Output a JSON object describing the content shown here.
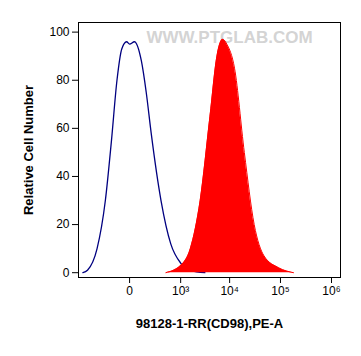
{
  "chart_data": {
    "type": "area",
    "xlabel": "98128-1-RR(CD98),PE-A",
    "ylabel": "Relative Cell Number",
    "annotations": [
      {
        "text": "WWW.PTGLAB.COM"
      }
    ],
    "log": "x",
    "xlim": [
      -1000,
      1500000
    ],
    "xticks": [
      0,
      {
        "value": 1000,
        "label": "10³"
      },
      {
        "value": 10000,
        "label": "10⁴"
      },
      {
        "value": 100000,
        "label": "10⁵"
      },
      {
        "value": 1000000,
        "label": "10⁶"
      }
    ],
    "ylim": [
      -2,
      104
    ],
    "yticks": [
      0,
      20,
      40,
      60,
      80,
      100
    ],
    "grid": false,
    "series": [
      {
        "type": "line",
        "color": "#000080",
        "x": [
          -800,
          -630,
          -370,
          -220,
          -140,
          -85,
          -47,
          -16,
          0,
          27,
          78,
          124,
          183,
          347,
          600,
          1000,
          1610,
          3200
        ],
        "values": [
          0,
          1,
          10,
          30,
          55,
          80,
          93,
          96,
          95,
          96,
          88,
          75,
          58,
          30,
          12,
          4,
          1,
          0
        ]
      },
      {
        "type": "area",
        "color": "#ff0000",
        "x": [
          460,
          1000,
          1610,
          2570,
          4060,
          5600,
          7300,
          8800,
          12500,
          19500,
          30500,
          47500,
          93000,
          180000
        ],
        "values": [
          0,
          3,
          10,
          30,
          65,
          90,
          97,
          95,
          85,
          50,
          20,
          7,
          2,
          0
        ]
      }
    ]
  }
}
